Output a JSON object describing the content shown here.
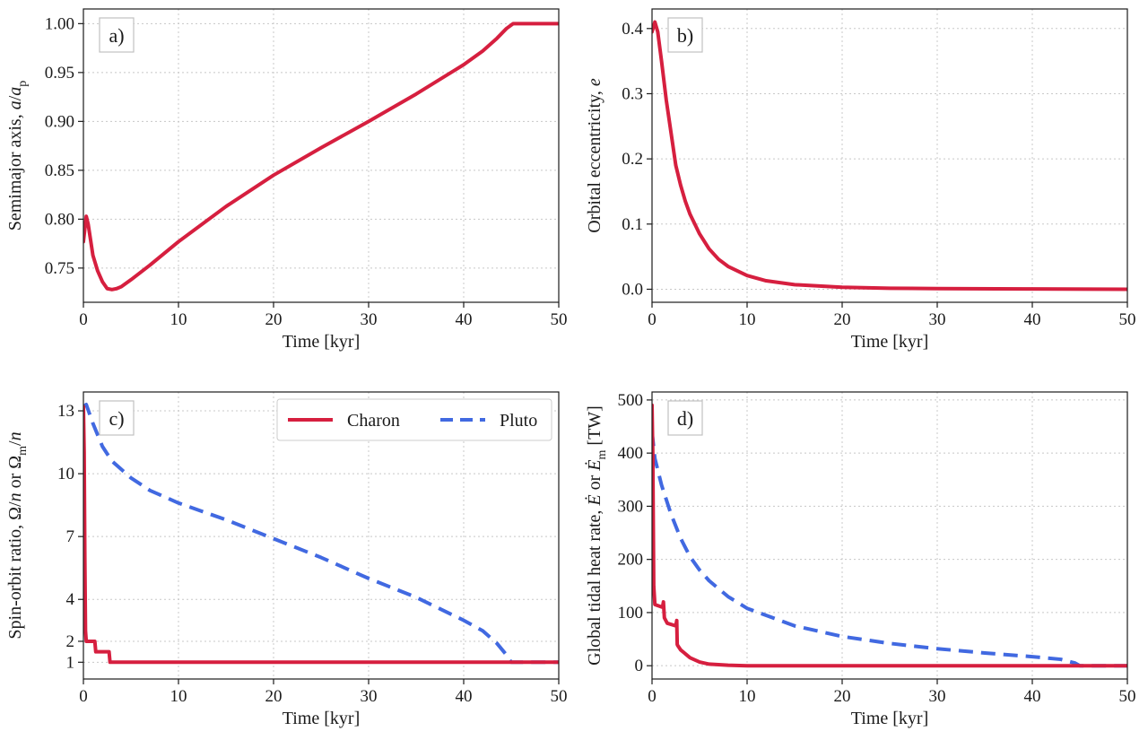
{
  "colors": {
    "charon": "#d61f3f",
    "pluto": "#4169e1",
    "grid": "#c8c8c8",
    "axis": "#1a1a1a"
  },
  "chart_data": [
    {
      "type": "line",
      "panel_label": "a)",
      "xlabel": "Time [kyr]",
      "ylabel_parts": [
        "Semimajor axis, ",
        "a",
        "/",
        "a",
        "p"
      ],
      "xlim": [
        0,
        50
      ],
      "ylim": [
        0.715,
        1.015
      ],
      "xticks": [
        0,
        10,
        20,
        30,
        40,
        50
      ],
      "yticks": [
        0.75,
        0.8,
        0.85,
        0.9,
        0.95,
        1.0
      ],
      "ytick_labels": [
        "0.75",
        "0.80",
        "0.85",
        "0.90",
        "0.95",
        "1.00"
      ],
      "series": [
        {
          "name": "Charon",
          "style": "solid",
          "color_key": "charon",
          "x": [
            0,
            0.3,
            0.5,
            1.0,
            1.5,
            2.0,
            2.5,
            3.0,
            3.5,
            4.0,
            5.0,
            7.0,
            10.0,
            15.0,
            20.0,
            25.0,
            30.0,
            35.0,
            40.0,
            42.0,
            43.5,
            44.5,
            45.2,
            46.0,
            50.0
          ],
          "y": [
            0.777,
            0.803,
            0.795,
            0.763,
            0.747,
            0.736,
            0.729,
            0.728,
            0.729,
            0.731,
            0.738,
            0.753,
            0.777,
            0.813,
            0.845,
            0.873,
            0.9,
            0.928,
            0.958,
            0.972,
            0.985,
            0.995,
            1.0,
            1.0,
            1.0
          ]
        }
      ]
    },
    {
      "type": "line",
      "panel_label": "b)",
      "xlabel": "Time [kyr]",
      "ylabel_parts": [
        "Orbital eccentricity, ",
        "e"
      ],
      "xlim": [
        0,
        50
      ],
      "ylim": [
        -0.02,
        0.43
      ],
      "xticks": [
        0,
        10,
        20,
        30,
        40,
        50
      ],
      "yticks": [
        0.0,
        0.1,
        0.2,
        0.3,
        0.4
      ],
      "ytick_labels": [
        "0.0",
        "0.1",
        "0.2",
        "0.3",
        "0.4"
      ],
      "series": [
        {
          "name": "Charon",
          "style": "solid",
          "color_key": "charon",
          "x": [
            0,
            0.3,
            0.6,
            1.0,
            1.5,
            2.0,
            2.5,
            3.0,
            3.5,
            4.0,
            5.0,
            6.0,
            7.0,
            8.0,
            10.0,
            12.0,
            15.0,
            20.0,
            25.0,
            30.0,
            40.0,
            50.0
          ],
          "y": [
            0.395,
            0.41,
            0.395,
            0.35,
            0.29,
            0.24,
            0.19,
            0.16,
            0.135,
            0.115,
            0.085,
            0.062,
            0.046,
            0.035,
            0.021,
            0.013,
            0.007,
            0.003,
            0.0015,
            0.001,
            0.0005,
            0.0
          ]
        }
      ]
    },
    {
      "type": "line",
      "panel_label": "c)",
      "xlabel": "Time [kyr]",
      "ylabel_parts": [
        "Spin-orbit ratio, Ω/",
        "n",
        " or Ω",
        "m",
        "/",
        "n"
      ],
      "xlim": [
        0,
        50
      ],
      "ylim": [
        0.2,
        13.9
      ],
      "xticks": [
        0,
        10,
        20,
        30,
        40,
        50
      ],
      "yticks": [
        1,
        2,
        4,
        7,
        10,
        13
      ],
      "ytick_labels": [
        "1",
        "2",
        "4",
        "7",
        "10",
        "13"
      ],
      "legend": {
        "position": "top-right",
        "entries": [
          "Charon",
          "Pluto"
        ]
      },
      "series": [
        {
          "name": "Charon",
          "style": "solid",
          "color_key": "charon",
          "x": [
            0,
            0.08,
            0.15,
            0.22,
            0.3,
            1.2,
            1.3,
            2.7,
            2.8,
            50.0
          ],
          "y": [
            13.2,
            11.0,
            6.0,
            2.5,
            2.0,
            2.0,
            1.5,
            1.5,
            1.0,
            1.0
          ]
        },
        {
          "name": "Pluto",
          "style": "dashed",
          "color_key": "pluto",
          "x": [
            0,
            0.3,
            1.0,
            2.0,
            3.0,
            4.0,
            5.0,
            7.0,
            10.0,
            15.0,
            20.0,
            25.0,
            30.0,
            35.0,
            40.0,
            42.0,
            43.5,
            44.5,
            45.0,
            50.0
          ],
          "y": [
            13.2,
            13.3,
            12.4,
            11.3,
            10.6,
            10.2,
            9.8,
            9.2,
            8.6,
            7.8,
            6.9,
            6.0,
            5.0,
            4.1,
            3.0,
            2.5,
            1.9,
            1.35,
            1.0,
            1.0
          ]
        }
      ]
    },
    {
      "type": "line",
      "panel_label": "d)",
      "xlabel": "Time [kyr]",
      "ylabel_parts": [
        "Global tidal heat rate, ",
        "Ė",
        " or ",
        "Ė",
        "m",
        " [TW]"
      ],
      "xlim": [
        0,
        50
      ],
      "ylim": [
        -25,
        515
      ],
      "xticks": [
        0,
        10,
        20,
        30,
        40,
        50
      ],
      "yticks": [
        0,
        100,
        200,
        300,
        400,
        500
      ],
      "ytick_labels": [
        "0",
        "100",
        "200",
        "300",
        "400",
        "500"
      ],
      "series": [
        {
          "name": "Charon",
          "style": "solid",
          "color_key": "charon",
          "x": [
            0,
            0.08,
            0.18,
            0.3,
            1.1,
            1.2,
            1.3,
            1.6,
            2.5,
            2.6,
            2.65,
            2.7,
            3.0,
            4.0,
            5.0,
            6.0,
            8.0,
            10.0,
            50.0
          ],
          "y": [
            490,
            400,
            150,
            115,
            110,
            120,
            90,
            80,
            75,
            85,
            40,
            38,
            30,
            15,
            7,
            3,
            1,
            0,
            0
          ]
        },
        {
          "name": "Pluto",
          "style": "dashed",
          "color_key": "pluto",
          "x": [
            0,
            0.3,
            1.0,
            2.0,
            3.0,
            4.0,
            5.0,
            6.0,
            8.0,
            10.0,
            15.0,
            20.0,
            25.0,
            30.0,
            35.0,
            40.0,
            43.0,
            44.5,
            45.0,
            50.0
          ],
          "y": [
            440,
            390,
            340,
            285,
            240,
            205,
            180,
            160,
            130,
            108,
            75,
            55,
            42,
            32,
            24,
            17,
            12,
            5,
            0,
            0
          ]
        }
      ]
    }
  ]
}
